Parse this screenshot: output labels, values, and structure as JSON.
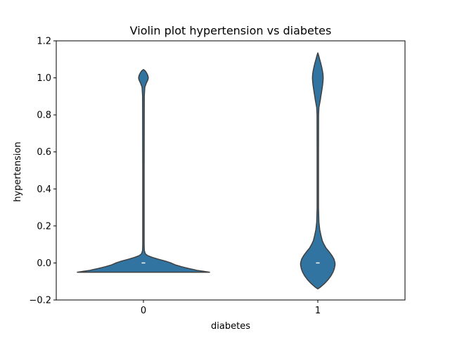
{
  "chart_data": {
    "type": "violin",
    "title": "Violin plot hypertension vs diabetes",
    "xlabel": "diabetes",
    "ylabel": "hypertension",
    "categories": [
      "0",
      "1"
    ],
    "ylim": [
      -0.2,
      1.2
    ],
    "yticks": [
      -0.2,
      0.0,
      0.2,
      0.4,
      0.6,
      0.8,
      1.0,
      1.2
    ],
    "ytick_labels": [
      "−0.2",
      "0.0",
      "0.2",
      "0.4",
      "0.6",
      "0.8",
      "1.0",
      "1.2"
    ],
    "grid": false,
    "colors": {
      "fill": "#3274a1",
      "edge": "#3f3f3f",
      "median": "#ffffff"
    },
    "violins": [
      {
        "category": "0",
        "median": 0.0,
        "profile": [
          [
            -0.05,
            0.96
          ],
          [
            -0.045,
            0.87
          ],
          [
            -0.04,
            0.78
          ],
          [
            -0.03,
            0.66
          ],
          [
            -0.02,
            0.55
          ],
          [
            -0.01,
            0.46
          ],
          [
            0.0,
            0.4
          ],
          [
            0.01,
            0.32
          ],
          [
            0.02,
            0.22
          ],
          [
            0.03,
            0.13
          ],
          [
            0.04,
            0.06
          ],
          [
            0.05,
            0.027
          ],
          [
            0.06,
            0.018
          ],
          [
            0.07,
            0.012
          ],
          [
            0.1,
            0.01
          ],
          [
            0.5,
            0.01
          ],
          [
            0.9,
            0.012
          ],
          [
            0.95,
            0.02
          ],
          [
            0.97,
            0.04
          ],
          [
            0.99,
            0.065
          ],
          [
            1.0,
            0.07
          ],
          [
            1.01,
            0.065
          ],
          [
            1.02,
            0.055
          ],
          [
            1.03,
            0.04
          ],
          [
            1.04,
            0.02
          ],
          [
            1.045,
            0.0
          ]
        ]
      },
      {
        "category": "1",
        "median": 0.0,
        "profile": [
          [
            -0.14,
            0.0
          ],
          [
            -0.13,
            0.04
          ],
          [
            -0.11,
            0.1
          ],
          [
            -0.09,
            0.15
          ],
          [
            -0.07,
            0.19
          ],
          [
            -0.05,
            0.22
          ],
          [
            -0.03,
            0.24
          ],
          [
            -0.01,
            0.25
          ],
          [
            0.0,
            0.25
          ],
          [
            0.02,
            0.235
          ],
          [
            0.04,
            0.205
          ],
          [
            0.06,
            0.165
          ],
          [
            0.08,
            0.12
          ],
          [
            0.1,
            0.09
          ],
          [
            0.12,
            0.065
          ],
          [
            0.15,
            0.045
          ],
          [
            0.18,
            0.028
          ],
          [
            0.22,
            0.016
          ],
          [
            0.3,
            0.01
          ],
          [
            0.6,
            0.01
          ],
          [
            0.8,
            0.011
          ],
          [
            0.84,
            0.016
          ],
          [
            0.86,
            0.026
          ],
          [
            0.88,
            0.036
          ],
          [
            0.9,
            0.044
          ],
          [
            0.92,
            0.053
          ],
          [
            0.94,
            0.061
          ],
          [
            0.96,
            0.069
          ],
          [
            0.98,
            0.075
          ],
          [
            1.0,
            0.078
          ],
          [
            1.02,
            0.075
          ],
          [
            1.04,
            0.066
          ],
          [
            1.06,
            0.055
          ],
          [
            1.08,
            0.042
          ],
          [
            1.1,
            0.027
          ],
          [
            1.12,
            0.013
          ],
          [
            1.135,
            0.0
          ]
        ]
      }
    ]
  }
}
